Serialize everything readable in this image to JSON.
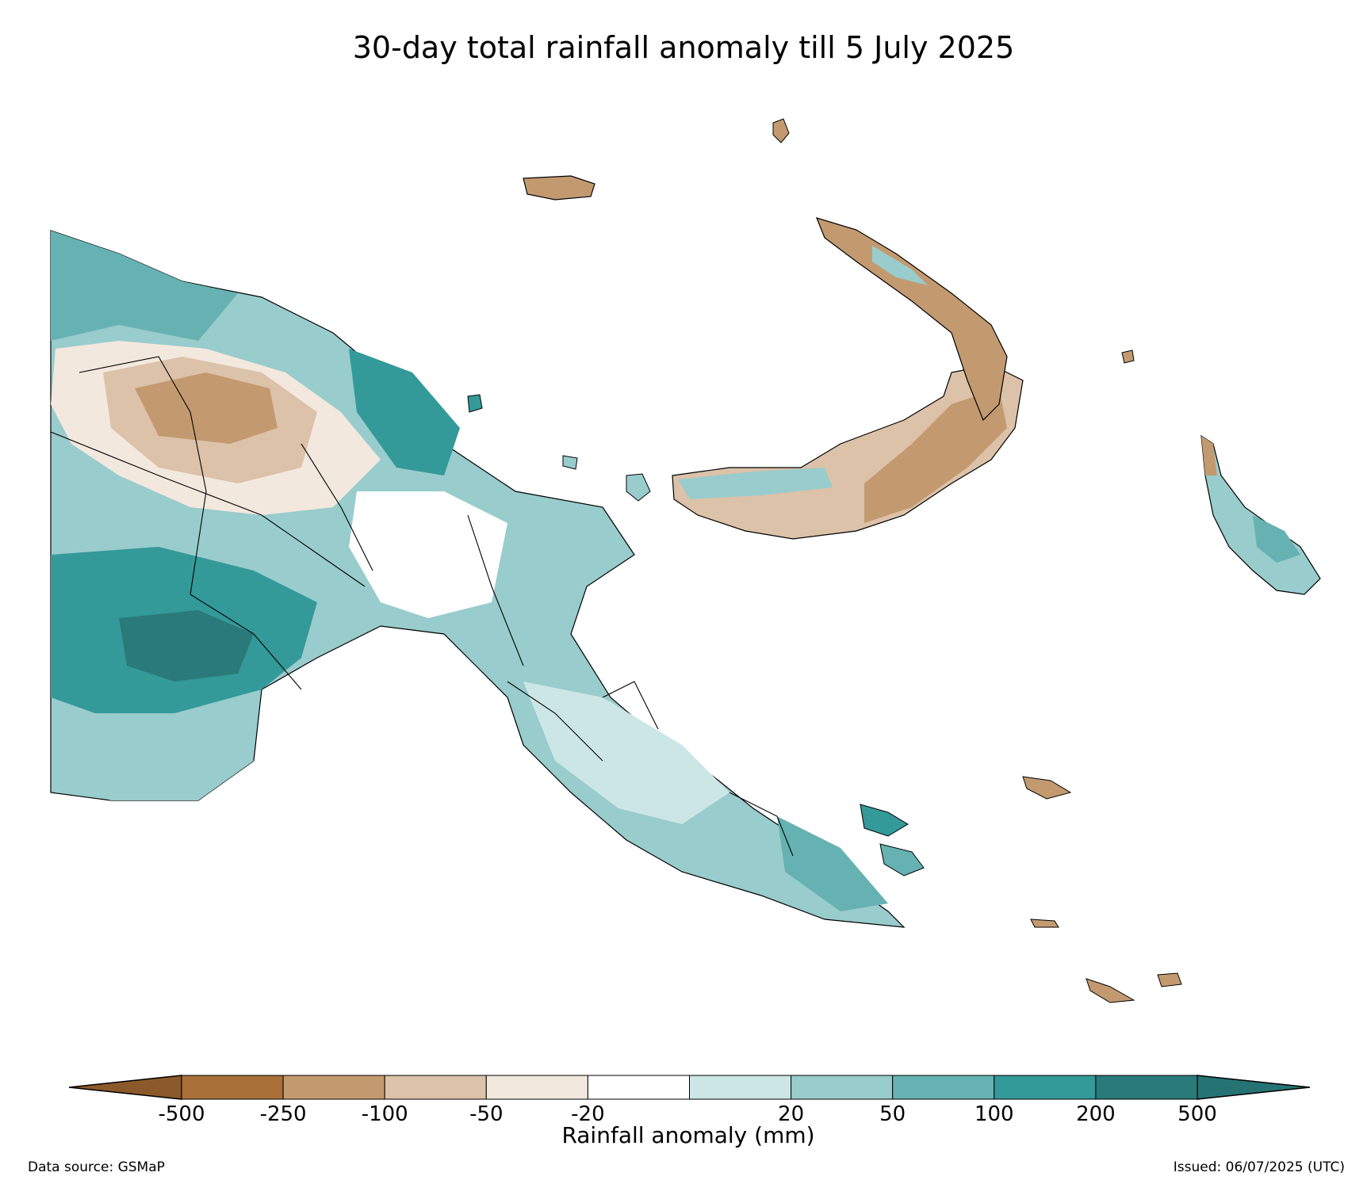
{
  "title": "30-day total rainfall anomaly till 5 July 2025",
  "colorbar": {
    "label": "Rainfall anomaly (mm)",
    "ticks": [
      "-500",
      "-250",
      "-100",
      "-50",
      "-20",
      "20",
      "50",
      "100",
      "200",
      "500"
    ],
    "colors": [
      "#a87038",
      "#c39a70",
      "#dbc2a8",
      "#f2e8de",
      "#ffffff",
      "#cce6e6",
      "#99cccc",
      "#66b2b2",
      "#339999",
      "#2a7a7a"
    ],
    "extend_low_color": "#8c5a2a",
    "extend_high_color": "#267373"
  },
  "footer": {
    "source": "Data source: GSMaP",
    "issued": "Issued: 06/07/2025 (UTC)"
  }
}
